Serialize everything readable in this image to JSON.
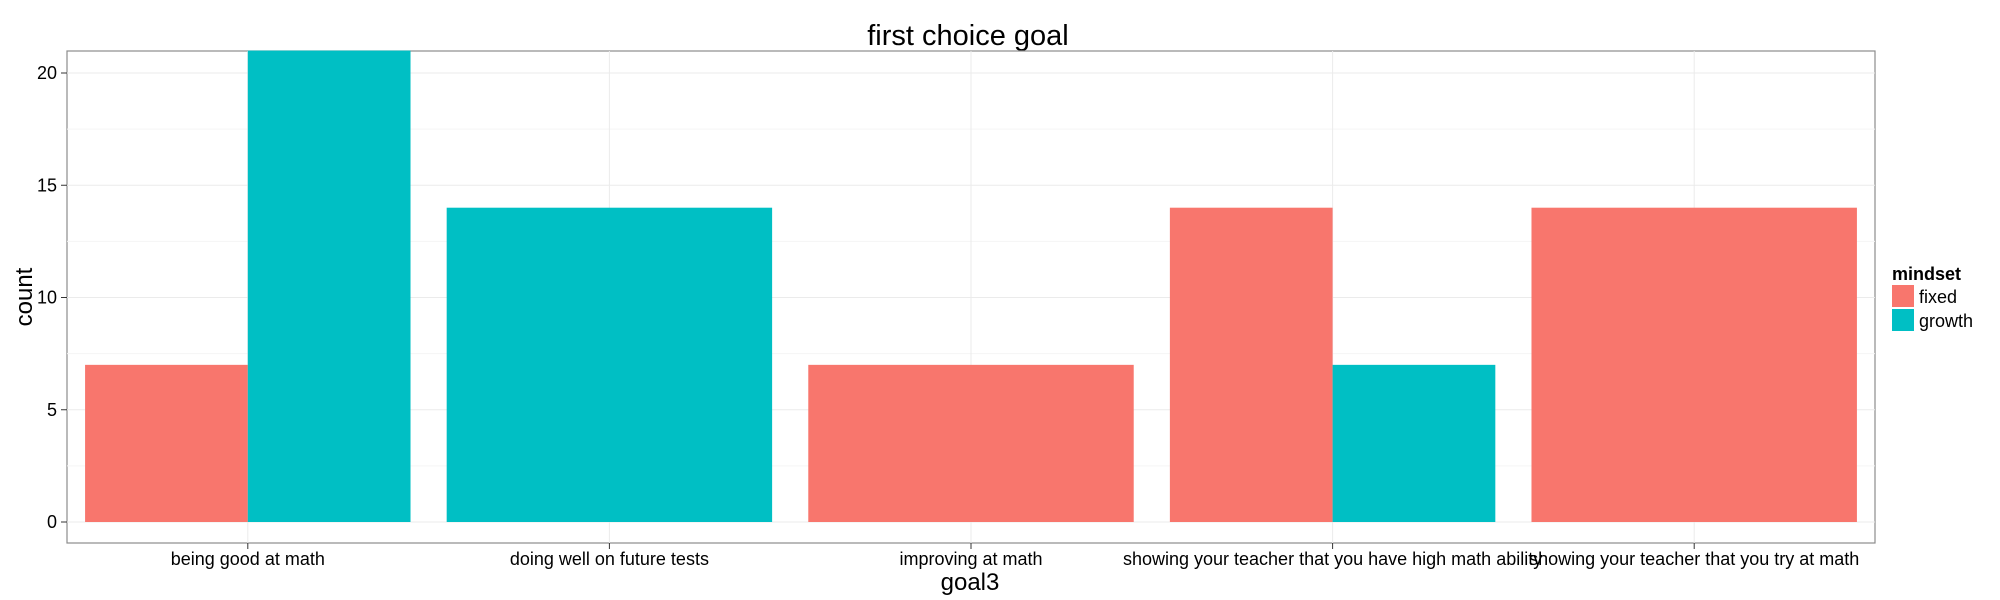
{
  "chart_data": {
    "type": "bar",
    "title": "first choice goal",
    "xlabel": "goal3",
    "ylabel": "count",
    "categories": [
      "being good at math",
      "doing well on future tests",
      "improving at math",
      "showing your teacher that you have high math ability",
      "showing your teacher that you try at math"
    ],
    "series": [
      {
        "name": "fixed",
        "color": "#F8766D",
        "values": [
          7,
          0,
          7,
          14,
          14
        ]
      },
      {
        "name": "growth",
        "color": "#00BFC4",
        "values": [
          21,
          14,
          0,
          7,
          0
        ]
      }
    ],
    "ylim": [
      0,
      22
    ],
    "yticks": [
      0,
      5,
      10,
      15,
      20
    ],
    "grid": true,
    "bar_position": "dodge",
    "legend": {
      "title": "mindset",
      "placement": "right"
    }
  }
}
